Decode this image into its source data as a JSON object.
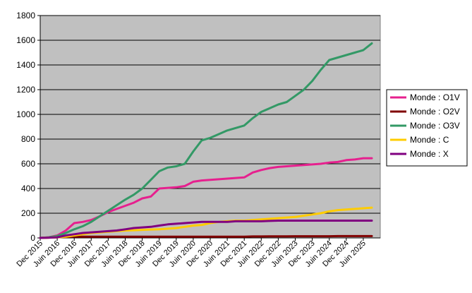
{
  "chart_data": {
    "type": "line",
    "title": "",
    "xlabel": "",
    "ylabel": "",
    "ylim": [
      0,
      1800
    ],
    "yticks": [
      "0",
      "200",
      "400",
      "600",
      "800",
      "1000",
      "1200",
      "1400",
      "1600",
      "1800"
    ],
    "grid": true,
    "legend_position": "right",
    "plot_background": "#C0C0C0",
    "x_tick_labels": [
      "Dec 2015",
      "Juin 2016",
      "Dec 2016",
      "Juin 2017",
      "Dec 2017",
      "Juin 2018",
      "Dec 2018",
      "Juin 2019",
      "Dec 2019",
      "Juin 2020",
      "Dec 2020",
      "Juin 2021",
      "Dec 2021",
      "Juin 2022",
      "Dec 2022",
      "Juin 2023",
      "Dec 2023",
      "Juin 2024",
      "Dec 2024",
      "Juin 2025"
    ],
    "x": [
      "Dec 2015",
      "Mar 2016",
      "Juin 2016",
      "Sep 2016",
      "Dec 2016",
      "Mar 2017",
      "Juin 2017",
      "Sep 2017",
      "Dec 2017",
      "Mar 2018",
      "Juin 2018",
      "Sep 2018",
      "Dec 2018",
      "Mar 2019",
      "Juin 2019",
      "Sep 2019",
      "Dec 2019",
      "Mar 2020",
      "Juin 2020",
      "Sep 2020",
      "Dec 2020",
      "Mar 2021",
      "Juin 2021",
      "Sep 2021",
      "Dec 2021",
      "Mar 2022",
      "Juin 2022",
      "Sep 2022",
      "Dec 2022",
      "Mar 2023",
      "Juin 2023",
      "Sep 2023",
      "Dec 2023",
      "Mar 2024",
      "Juin 2024",
      "Sep 2024",
      "Dec 2024",
      "Mar 2025",
      "Juin 2025",
      "Sep 2025"
    ],
    "series": [
      {
        "name": "Monde : O1V",
        "color": "#E6208E",
        "values": [
          0,
          5,
          20,
          60,
          120,
          130,
          145,
          175,
          210,
          235,
          260,
          285,
          320,
          335,
          400,
          405,
          410,
          420,
          455,
          465,
          470,
          475,
          480,
          485,
          490,
          530,
          550,
          565,
          575,
          580,
          585,
          590,
          595,
          600,
          610,
          615,
          630,
          635,
          645,
          645
        ]
      },
      {
        "name": "Monde : O2V",
        "color": "#800000",
        "values": [
          0,
          2,
          5,
          8,
          10,
          10,
          10,
          10,
          10,
          10,
          10,
          10,
          10,
          10,
          10,
          10,
          10,
          10,
          10,
          10,
          10,
          10,
          10,
          10,
          10,
          12,
          12,
          13,
          13,
          13,
          14,
          14,
          14,
          14,
          14,
          15,
          15,
          15,
          15,
          15
        ]
      },
      {
        "name": "Monde : O3V",
        "color": "#339966",
        "values": [
          0,
          5,
          15,
          40,
          70,
          95,
          130,
          175,
          220,
          265,
          310,
          350,
          400,
          470,
          540,
          570,
          580,
          600,
          700,
          790,
          810,
          840,
          870,
          890,
          910,
          970,
          1020,
          1050,
          1080,
          1100,
          1150,
          1200,
          1270,
          1360,
          1440,
          1460,
          1480,
          1500,
          1520,
          1575
        ]
      },
      {
        "name": "Monde : C",
        "color": "#FFCC00",
        "values": [
          0,
          2,
          5,
          10,
          20,
          30,
          40,
          45,
          50,
          55,
          60,
          62,
          65,
          68,
          70,
          75,
          80,
          90,
          100,
          105,
          120,
          130,
          135,
          140,
          140,
          145,
          150,
          155,
          160,
          165,
          170,
          180,
          190,
          200,
          215,
          225,
          230,
          235,
          240,
          245
        ]
      },
      {
        "name": "Monde : X",
        "color": "#800080",
        "values": [
          0,
          2,
          5,
          20,
          30,
          40,
          45,
          50,
          55,
          60,
          70,
          80,
          85,
          90,
          100,
          110,
          115,
          120,
          125,
          130,
          130,
          130,
          130,
          135,
          135,
          135,
          135,
          138,
          140,
          140,
          140,
          140,
          140,
          140,
          140,
          140,
          140,
          140,
          140,
          140
        ]
      }
    ]
  }
}
